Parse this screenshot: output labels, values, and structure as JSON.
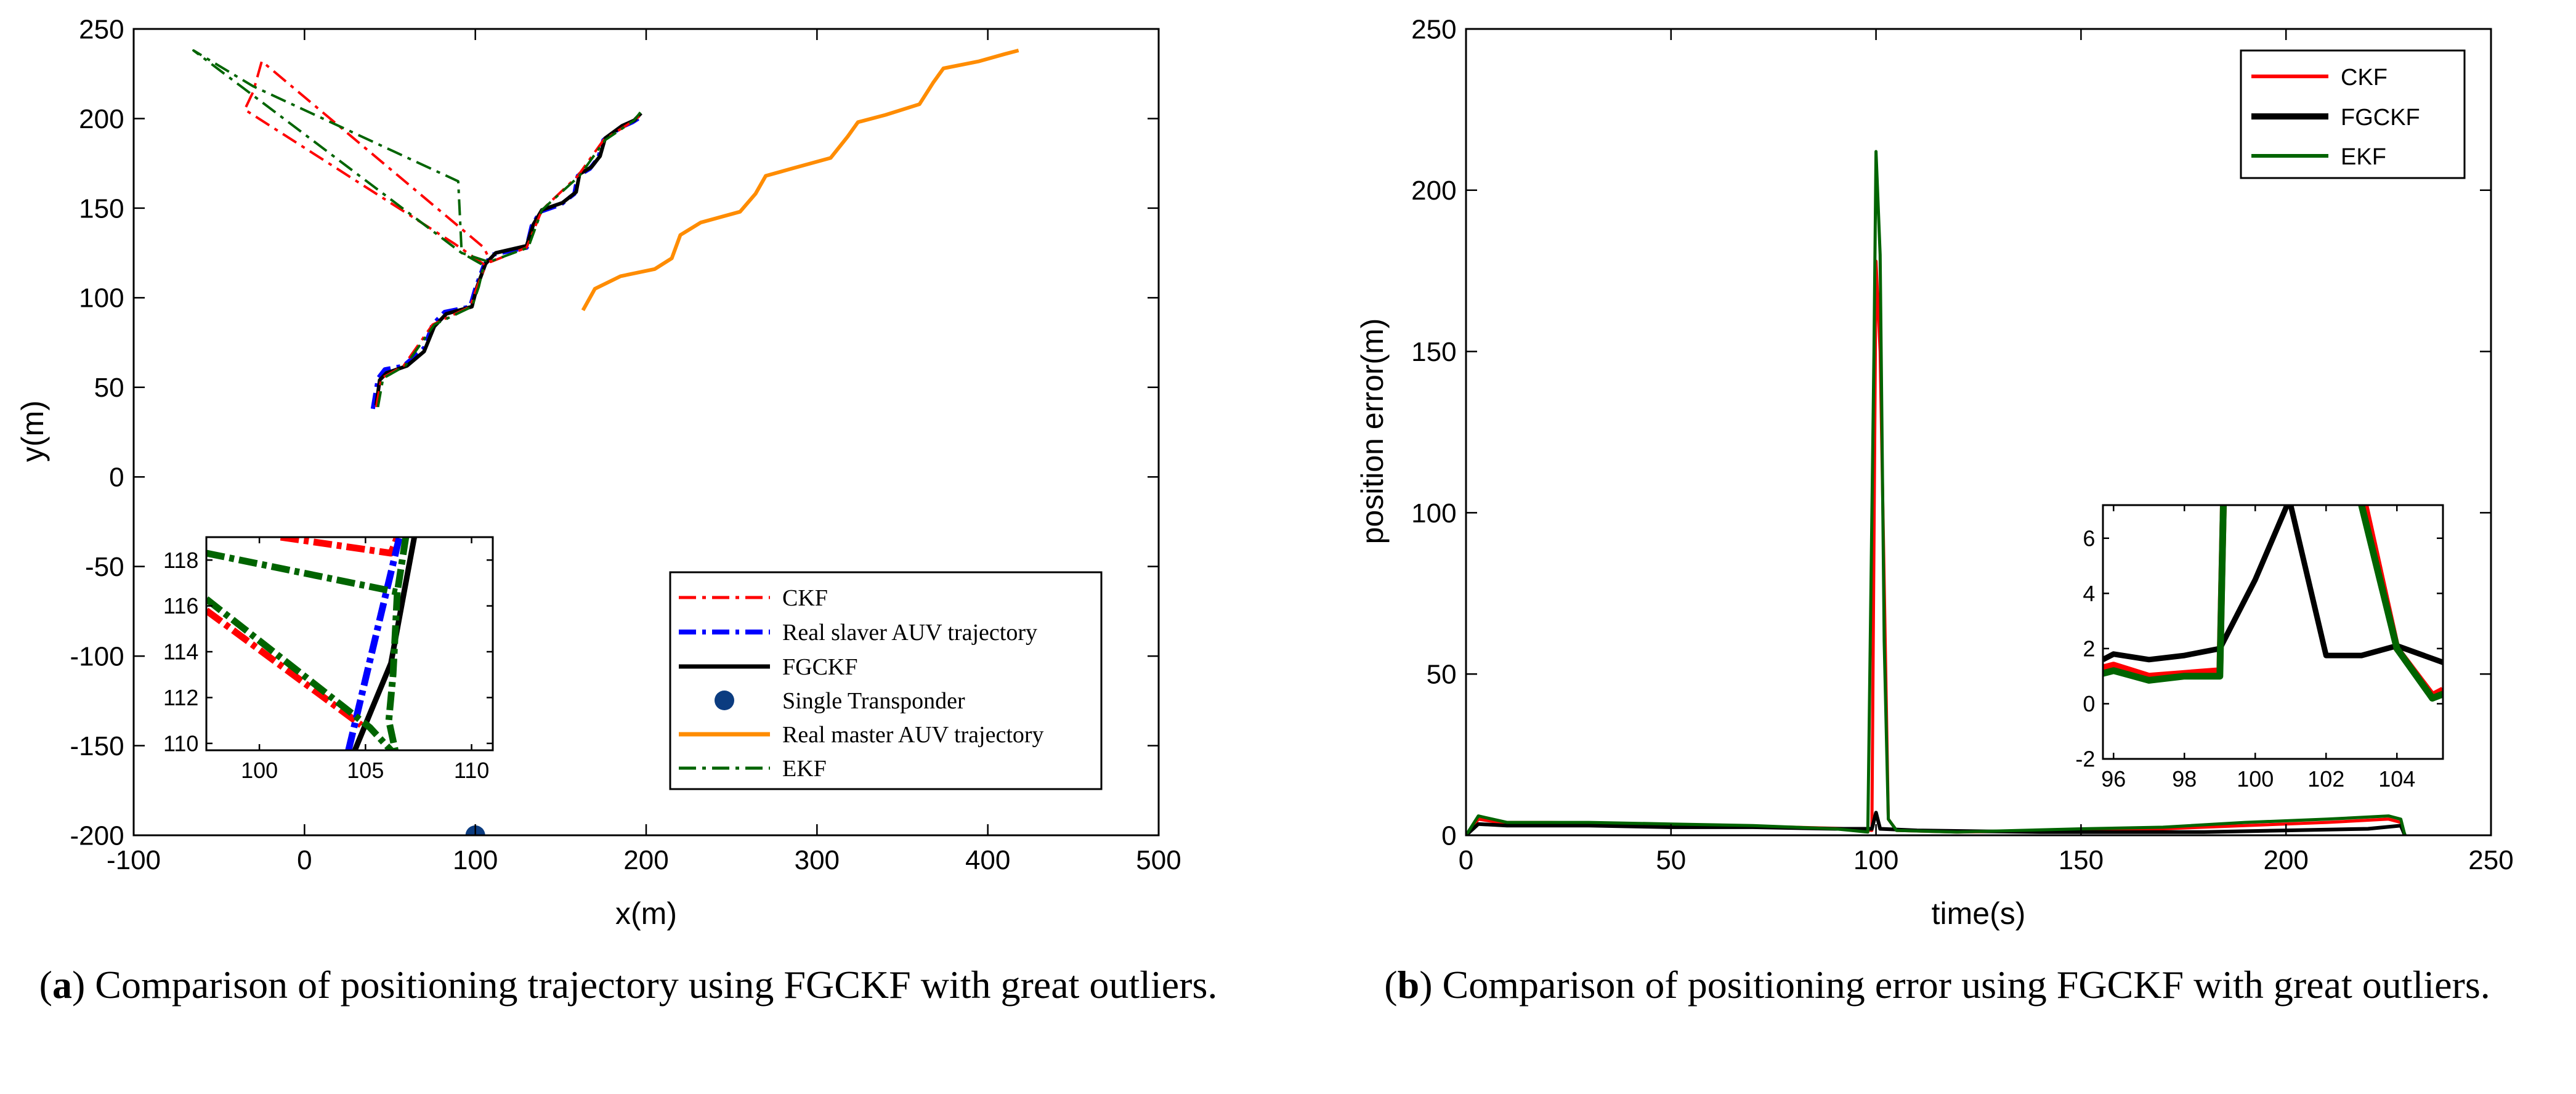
{
  "colors": {
    "ckf": "#ff0000",
    "fgckf": "#000000",
    "ekf": "#006400",
    "slaver": "#0000ff",
    "master": "#ff8c00",
    "transponder": "#0b3c80"
  },
  "captions": {
    "a": {
      "letter": "a",
      "text": " Comparison of positioning trajectory using FGCKF with great outliers."
    },
    "b": {
      "letter": "b",
      "text": " Comparison of positioning error using FGCKF with great outliers."
    }
  },
  "chart_data": [
    {
      "type": "line",
      "xlabel": "x(m)",
      "ylabel": "y(m)",
      "xlim": [
        -100,
        500
      ],
      "ylim": [
        -200,
        250
      ],
      "xticks": [
        -100,
        0,
        100,
        200,
        300,
        400,
        500
      ],
      "yticks": [
        -200,
        -150,
        -100,
        -50,
        0,
        50,
        100,
        150,
        200,
        250
      ],
      "legend_position": "bottom-right",
      "legend": [
        "CKF",
        "Real slaver AUV trajectory",
        "FGCKF",
        "Single Transponder",
        "Real master AUV trajectory",
        "EKF"
      ],
      "series": [
        {
          "name": "Real master AUV trajectory",
          "style": "solid",
          "points": [
            [
              163,
              93
            ],
            [
              170,
              105
            ],
            [
              185,
              112
            ],
            [
              205,
              116
            ],
            [
              215,
              122
            ],
            [
              220,
              135
            ],
            [
              232,
              142
            ],
            [
              255,
              148
            ],
            [
              264,
              158
            ],
            [
              270,
              168
            ],
            [
              285,
              172
            ],
            [
              308,
              178
            ],
            [
              318,
              190
            ],
            [
              324,
              198
            ],
            [
              340,
              202
            ],
            [
              360,
              208
            ],
            [
              368,
              220
            ],
            [
              374,
              228
            ],
            [
              395,
              232
            ],
            [
              410,
              236
            ],
            [
              418,
              238
            ]
          ]
        },
        {
          "name": "Real slaver AUV trajectory",
          "style": "dashdot",
          "points": [
            [
              40,
              38
            ],
            [
              43,
              55
            ],
            [
              47,
              60
            ],
            [
              58,
              62
            ],
            [
              70,
              72
            ],
            [
              75,
              85
            ],
            [
              82,
              92
            ],
            [
              97,
              95
            ],
            [
              100,
              105
            ],
            [
              105,
              118
            ],
            [
              110,
              124
            ],
            [
              130,
              128
            ],
            [
              133,
              140
            ],
            [
              138,
              148
            ],
            [
              150,
              152
            ],
            [
              158,
              158
            ],
            [
              160,
              168
            ],
            [
              167,
              172
            ],
            [
              172,
              178
            ],
            [
              175,
              188
            ],
            [
              185,
              195
            ],
            [
              192,
              198
            ],
            [
              197,
              201
            ]
          ]
        },
        {
          "name": "FGCKF",
          "style": "solid",
          "points": [
            [
              42,
              40
            ],
            [
              44,
              54
            ],
            [
              48,
              58
            ],
            [
              60,
              62
            ],
            [
              70,
              70
            ],
            [
              76,
              84
            ],
            [
              83,
              91
            ],
            [
              98,
              95
            ],
            [
              101,
              106
            ],
            [
              106,
              119
            ],
            [
              112,
              125
            ],
            [
              130,
              129
            ],
            [
              134,
              141
            ],
            [
              139,
              149
            ],
            [
              151,
              153
            ],
            [
              159,
              159
            ],
            [
              161,
              169
            ],
            [
              168,
              173
            ],
            [
              173,
              179
            ],
            [
              176,
              189
            ],
            [
              186,
              196
            ],
            [
              193,
              199
            ],
            [
              197,
              203
            ]
          ]
        },
        {
          "name": "CKF",
          "style": "dashdot",
          "points": [
            [
              42,
              39
            ],
            [
              45,
              55
            ],
            [
              58,
              62
            ],
            [
              75,
              85
            ],
            [
              97,
              95
            ],
            [
              101,
              106
            ],
            [
              106,
              118
            ],
            [
              88,
              130
            ],
            [
              -35,
              205
            ],
            [
              -30,
              215
            ],
            [
              -25,
              232
            ],
            [
              105,
              128
            ],
            [
              109,
              120
            ],
            [
              130,
              128
            ],
            [
              139,
              149
            ],
            [
              160,
              168
            ],
            [
              175,
              188
            ],
            [
              193,
              199
            ],
            [
              197,
              202
            ]
          ]
        },
        {
          "name": "EKF",
          "style": "dashdot",
          "points": [
            [
              43,
              39
            ],
            [
              46,
              55
            ],
            [
              59,
              62
            ],
            [
              76,
              85
            ],
            [
              98,
              95
            ],
            [
              102,
              106
            ],
            [
              105,
              118
            ],
            [
              92,
              125
            ],
            [
              -65,
              238
            ],
            [
              -30,
              218
            ],
            [
              90,
              165
            ],
            [
              92,
              125
            ],
            [
              108,
              120
            ],
            [
              131,
              128
            ],
            [
              139,
              149
            ],
            [
              161,
              168
            ],
            [
              176,
              188
            ],
            [
              193,
              199
            ],
            [
              197,
              204
            ]
          ]
        },
        {
          "name": "Single Transponder",
          "style": "marker",
          "points": [
            [
              100,
              -200
            ]
          ]
        }
      ],
      "inset": {
        "xlim": [
          97.5,
          111
        ],
        "ylim": [
          109.7,
          119
        ],
        "xticks": [
          100,
          105,
          110
        ],
        "yticks": [
          110,
          112,
          114,
          116,
          118
        ],
        "series": [
          {
            "name": "CKF",
            "points": [
              [
                101,
                119
              ],
              [
                106.2,
                118.3
              ],
              [
                106.5,
                119
              ]
            ]
          },
          {
            "name": "CKF-lower",
            "points": [
              [
                97.5,
                115.8
              ],
              [
                104.8,
                110.8
              ]
            ]
          },
          {
            "name": "Real slaver AUV trajectory",
            "points": [
              [
                104.2,
                109.7
              ],
              [
                106.6,
                119
              ]
            ]
          },
          {
            "name": "FGCKF",
            "points": [
              [
                104.5,
                109.7
              ],
              [
                105.3,
                111.5
              ],
              [
                106.2,
                113.5
              ],
              [
                106.8,
                116.5
              ],
              [
                107.3,
                119
              ]
            ]
          },
          {
            "name": "EKF",
            "points": [
              [
                97.5,
                118.3
              ],
              [
                106.5,
                116.6
              ],
              [
                106.9,
                119
              ]
            ]
          },
          {
            "name": "EKF-mid",
            "points": [
              [
                106.5,
                116.6
              ],
              [
                106.3,
                113
              ],
              [
                106.1,
                111
              ],
              [
                106.4,
                109.7
              ]
            ]
          },
          {
            "name": "EKF-lower",
            "points": [
              [
                97.5,
                116.3
              ],
              [
                105.2,
                110.7
              ],
              [
                106.2,
                109.7
              ]
            ]
          }
        ]
      }
    },
    {
      "type": "line",
      "xlabel": "time(s)",
      "ylabel": "position error(m)",
      "xlim": [
        0,
        250
      ],
      "ylim": [
        0,
        250
      ],
      "xticks": [
        0,
        50,
        100,
        150,
        200,
        250
      ],
      "yticks": [
        0,
        50,
        100,
        150,
        200,
        250
      ],
      "legend_position": "top-right",
      "legend": [
        "CKF",
        "FGCKF",
        "EKF"
      ],
      "series": [
        {
          "name": "CKF",
          "points": [
            [
              0,
              0
            ],
            [
              3,
              5
            ],
            [
              8,
              4
            ],
            [
              20,
              4
            ],
            [
              40,
              3.5
            ],
            [
              60,
              3
            ],
            [
              80,
              2.5
            ],
            [
              95,
              2
            ],
            [
              99,
              1.5
            ],
            [
              100,
              178
            ],
            [
              101,
              150
            ],
            [
              103,
              5
            ],
            [
              105,
              1.5
            ],
            [
              120,
              1
            ],
            [
              150,
              1.5
            ],
            [
              170,
              2
            ],
            [
              190,
              3
            ],
            [
              210,
              4
            ],
            [
              225,
              5
            ],
            [
              228,
              4
            ],
            [
              229,
              0
            ]
          ]
        },
        {
          "name": "FGCKF",
          "points": [
            [
              0,
              0
            ],
            [
              3,
              3.5
            ],
            [
              10,
              3
            ],
            [
              30,
              3
            ],
            [
              50,
              2.5
            ],
            [
              70,
              2.5
            ],
            [
              90,
              2
            ],
            [
              99,
              2
            ],
            [
              100,
              7
            ],
            [
              101,
              2
            ],
            [
              110,
              1.5
            ],
            [
              140,
              1
            ],
            [
              160,
              1
            ],
            [
              180,
              1
            ],
            [
              200,
              1.5
            ],
            [
              220,
              2
            ],
            [
              228,
              3
            ],
            [
              229,
              0
            ]
          ]
        },
        {
          "name": "EKF",
          "points": [
            [
              0,
              0
            ],
            [
              3,
              6
            ],
            [
              10,
              4
            ],
            [
              30,
              4
            ],
            [
              50,
              3.5
            ],
            [
              70,
              3
            ],
            [
              90,
              2
            ],
            [
              98,
              1
            ],
            [
              99.5,
              150
            ],
            [
              100,
              212
            ],
            [
              101,
              180
            ],
            [
              102,
              60
            ],
            [
              103,
              5
            ],
            [
              105,
              1.5
            ],
            [
              120,
              1
            ],
            [
              150,
              2
            ],
            [
              170,
              2.5
            ],
            [
              190,
              4
            ],
            [
              210,
              5
            ],
            [
              225,
              6
            ],
            [
              228,
              5
            ],
            [
              229,
              0
            ]
          ]
        }
      ],
      "inset": {
        "xlim": [
          95.7,
          105.3
        ],
        "ylim": [
          -2,
          7.2
        ],
        "xticks": [
          96,
          98,
          100,
          102,
          104
        ],
        "yticks": [
          -2,
          0,
          2,
          4,
          6
        ],
        "series": [
          {
            "name": "CKF",
            "points": [
              [
                95.7,
                1.3
              ],
              [
                96,
                1.4
              ],
              [
                97,
                1
              ],
              [
                98,
                1.1
              ],
              [
                99,
                1.2
              ],
              [
                99.1,
                7.2
              ]
            ]
          },
          {
            "name": "CKF-right",
            "points": [
              [
                103.1,
                7.2
              ],
              [
                104,
                2
              ],
              [
                105,
                0.3
              ],
              [
                105.3,
                0.5
              ]
            ]
          },
          {
            "name": "FGCKF",
            "points": [
              [
                95.7,
                1.6
              ],
              [
                96,
                1.8
              ],
              [
                97,
                1.6
              ],
              [
                98,
                1.75
              ],
              [
                99,
                2
              ],
              [
                100,
                4.5
              ],
              [
                100.9,
                7.2
              ],
              [
                101,
                7.2
              ],
              [
                102,
                1.75
              ],
              [
                103,
                1.75
              ],
              [
                104,
                2.1
              ],
              [
                105.3,
                1.5
              ]
            ]
          },
          {
            "name": "EKF",
            "points": [
              [
                95.7,
                1.1
              ],
              [
                96,
                1.2
              ],
              [
                97,
                0.85
              ],
              [
                98,
                1
              ],
              [
                99,
                1
              ],
              [
                99.1,
                7.2
              ]
            ]
          },
          {
            "name": "EKF-right",
            "points": [
              [
                103,
                7.2
              ],
              [
                104,
                2
              ],
              [
                105,
                0.2
              ],
              [
                105.3,
                0.35
              ]
            ]
          }
        ]
      }
    }
  ]
}
